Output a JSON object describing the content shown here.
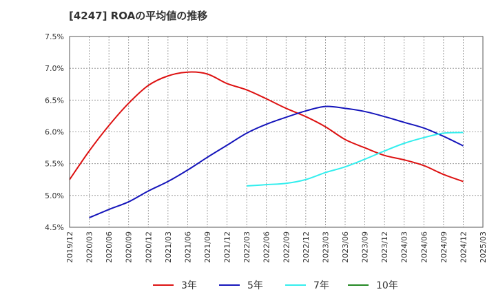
{
  "chart_data": {
    "type": "line",
    "title": "[4247]  ROAの平均値の推移",
    "xlabel": "",
    "ylabel": "",
    "ylim": [
      4.5,
      7.5
    ],
    "yticks": [
      "4.5%",
      "5.0%",
      "5.5%",
      "6.0%",
      "6.5%",
      "7.0%",
      "7.5%"
    ],
    "yticks_values": [
      4.5,
      5.0,
      5.5,
      6.0,
      6.5,
      7.0,
      7.5
    ],
    "x": [
      "2019/12",
      "2020/03",
      "2020/06",
      "2020/09",
      "2020/12",
      "2021/03",
      "2021/06",
      "2021/09",
      "2021/12",
      "2022/03",
      "2022/06",
      "2022/09",
      "2022/12",
      "2023/03",
      "2023/06",
      "2023/09",
      "2023/12",
      "2024/03",
      "2024/06",
      "2024/09",
      "2024/12",
      "2025/03"
    ],
    "grid": true,
    "legend_position": "bottom",
    "series": [
      {
        "name": "3年",
        "color": "#dd1111",
        "values": [
          5.25,
          5.7,
          6.1,
          6.45,
          6.73,
          6.88,
          6.94,
          6.91,
          6.76,
          6.66,
          6.52,
          6.37,
          6.24,
          6.08,
          5.88,
          5.75,
          5.63,
          5.56,
          5.47,
          5.33,
          5.22,
          null
        ]
      },
      {
        "name": "5年",
        "color": "#1515bb",
        "values": [
          null,
          4.65,
          4.78,
          4.9,
          5.07,
          5.22,
          5.4,
          5.6,
          5.79,
          5.98,
          6.12,
          6.23,
          6.33,
          6.4,
          6.37,
          6.32,
          6.24,
          6.15,
          6.06,
          5.93,
          5.78,
          null
        ]
      },
      {
        "name": "7年",
        "color": "#33eeee",
        "values": [
          null,
          null,
          null,
          null,
          null,
          null,
          null,
          null,
          null,
          5.15,
          5.17,
          5.19,
          5.25,
          5.36,
          5.45,
          5.57,
          5.7,
          5.82,
          5.91,
          5.98,
          5.99,
          null
        ]
      },
      {
        "name": "10年",
        "color": "#228822",
        "values": [
          null,
          null,
          null,
          null,
          null,
          null,
          null,
          null,
          null,
          null,
          null,
          null,
          null,
          null,
          null,
          null,
          null,
          null,
          null,
          null,
          null,
          null
        ]
      }
    ]
  }
}
